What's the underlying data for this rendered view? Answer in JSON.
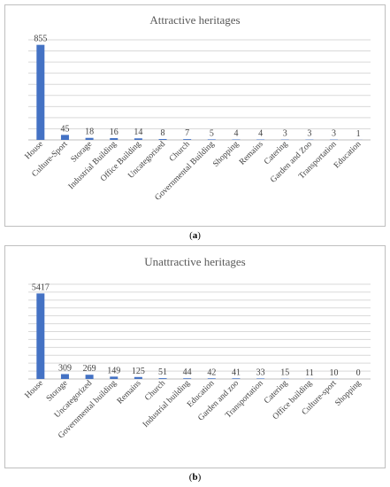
{
  "chart_data": [
    {
      "type": "bar",
      "title": "Attractive heritages",
      "categories": [
        "House",
        "Culture-Sport",
        "Storage",
        "Industrial Building",
        "Office Building",
        "Uncategorised",
        "Church",
        "Governmental Building",
        "Shopping",
        "Remains",
        "Catering",
        "Garden and Zoo",
        "Transportation",
        "Education"
      ],
      "values": [
        855,
        45,
        18,
        16,
        14,
        8,
        7,
        5,
        4,
        4,
        3,
        3,
        3,
        1
      ],
      "ylim": [
        0,
        900
      ],
      "grid": true,
      "color": "#4472c4"
    },
    {
      "type": "bar",
      "title": "Unattractive heritages",
      "categories": [
        "House",
        "Storage",
        "Uncategorized",
        "Governmental building",
        "Remains",
        "Church",
        "Industrial building",
        "Education",
        "Garden and zoo",
        "Transportation",
        "Catering",
        "Office building",
        "Culture-sport",
        "Shopping"
      ],
      "values": [
        5417,
        309,
        269,
        149,
        125,
        51,
        44,
        42,
        41,
        33,
        15,
        11,
        10,
        0
      ],
      "ylim": [
        0,
        6000
      ],
      "grid": true,
      "color": "#4472c4"
    }
  ],
  "captions": {
    "a": {
      "open": "(",
      "letter": "a",
      "close": ")"
    },
    "b": {
      "open": "(",
      "letter": "b",
      "close": ")"
    }
  }
}
